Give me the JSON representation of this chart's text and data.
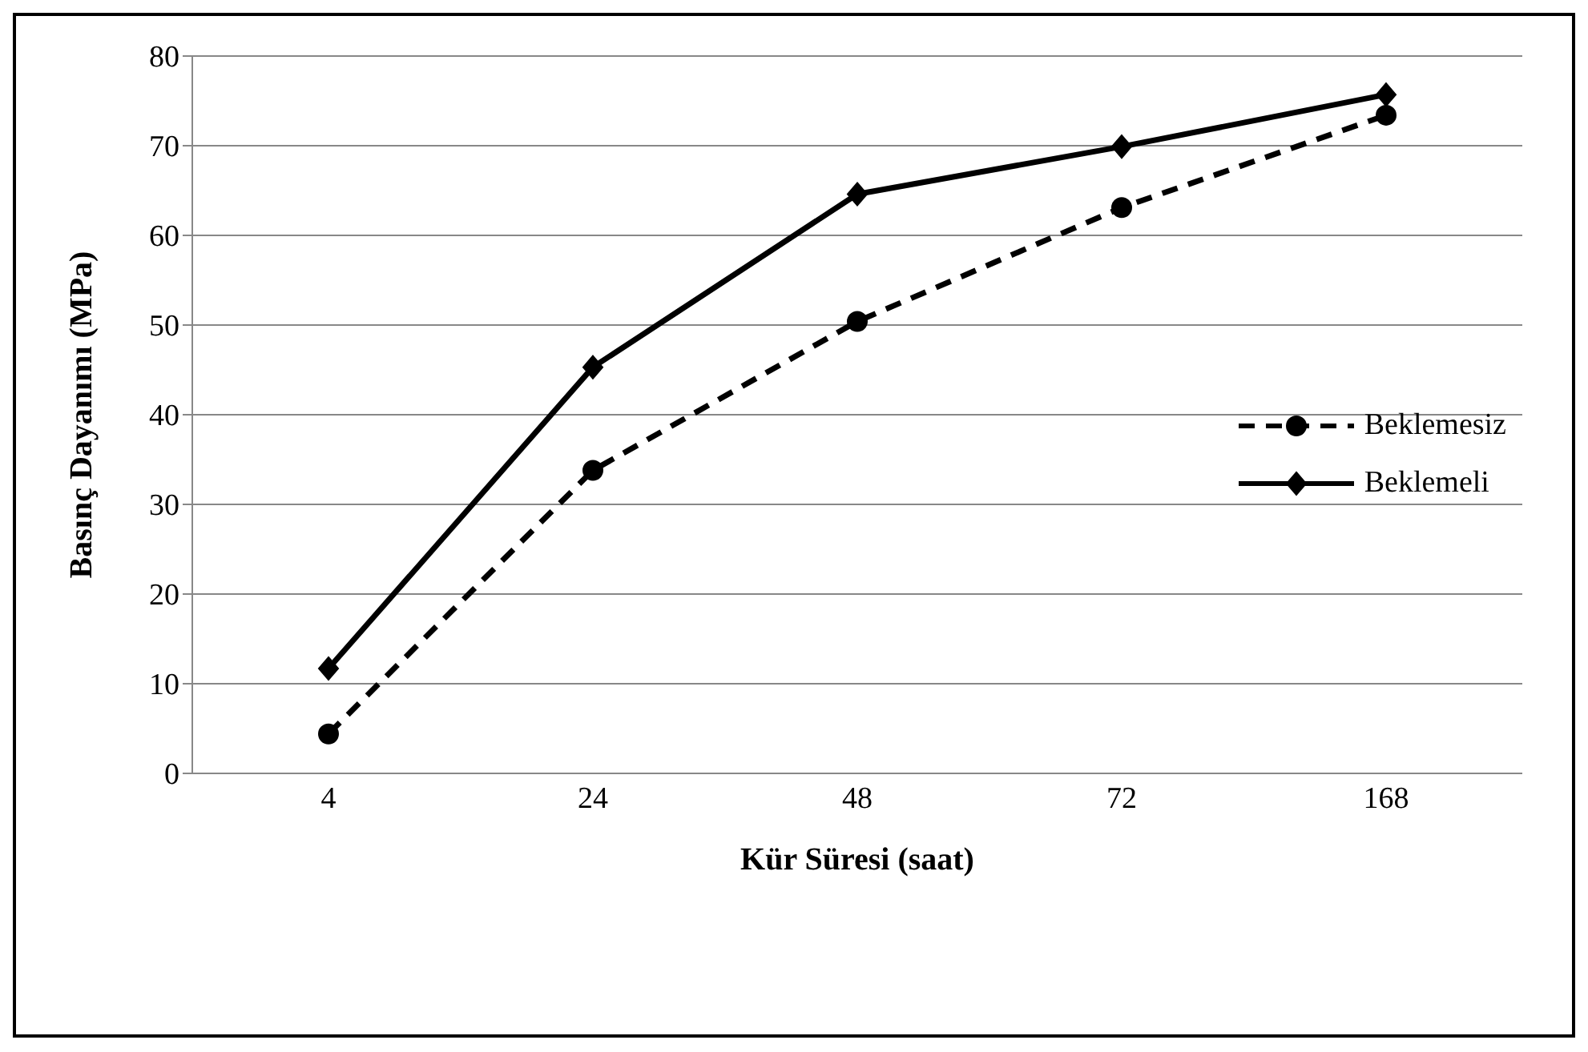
{
  "chart_data": {
    "type": "line",
    "xlabel": "Kür Süresi (saat)",
    "ylabel": "Basınç Dayanımı (MPa)",
    "categories": [
      "4",
      "24",
      "48",
      "72",
      "168"
    ],
    "series": [
      {
        "name": "Beklemesiz",
        "color": "#000000",
        "marker": "circle",
        "line_style": "dashed",
        "values": [
          4.4,
          33.8,
          50.4,
          63.1,
          73.4
        ]
      },
      {
        "name": "Beklemeli",
        "color": "#000000",
        "marker": "diamond",
        "line_style": "solid",
        "values": [
          11.7,
          45.3,
          64.6,
          69.9,
          75.7
        ]
      }
    ],
    "ylim": [
      0,
      80
    ],
    "yticks": [
      0,
      10,
      20,
      30,
      40,
      50,
      60,
      70,
      80
    ],
    "grid": "y",
    "legend": "right"
  }
}
